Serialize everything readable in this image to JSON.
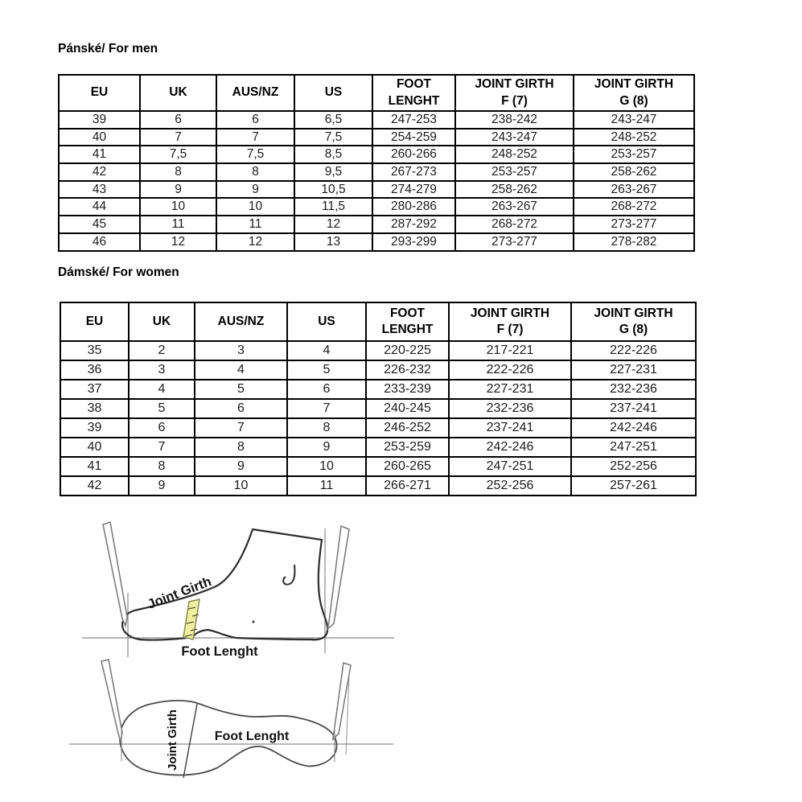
{
  "men": {
    "title": "Pánské/ For men",
    "table": {
      "headers": [
        "EU",
        "UK",
        "AUS/NZ",
        "US",
        "FOOT\nLENGHT",
        "JOINT GIRTH\nF (7)",
        "JOINT GIRTH\nG (8)"
      ],
      "rows": [
        [
          "39",
          "6",
          "6",
          "6,5",
          "247-253",
          "238-242",
          "243-247"
        ],
        [
          "40",
          "7",
          "7",
          "7,5",
          "254-259",
          "243-247",
          "248-252"
        ],
        [
          "41",
          "7,5",
          "7,5",
          "8,5",
          "260-266",
          "248-252",
          "253-257"
        ],
        [
          "42",
          "8",
          "8",
          "9,5",
          "267-273",
          "253-257",
          "258-262"
        ],
        [
          "43",
          "9",
          "9",
          "10,5",
          "274-279",
          "258-262",
          "263-267"
        ],
        [
          "44",
          "10",
          "10",
          "11,5",
          "280-286",
          "263-267",
          "268-272"
        ],
        [
          "45",
          "11",
          "11",
          "12",
          "287-292",
          "268-272",
          "273-277"
        ],
        [
          "46",
          "12",
          "12",
          "13",
          "293-299",
          "273-277",
          "278-282"
        ]
      ]
    }
  },
  "women": {
    "title": "Dámské/ For women",
    "table": {
      "headers": [
        "EU",
        "UK",
        "AUS/NZ",
        "US",
        "FOOT\nLENGHT",
        "JOINT GIRTH\nF (7)",
        "JOINT GIRTH\nG (8)"
      ],
      "rows": [
        [
          "35",
          "2",
          "3",
          "4",
          "220-225",
          "217-221",
          "222-226"
        ],
        [
          "36",
          "3",
          "4",
          "5",
          "226-232",
          "222-226",
          "227-231"
        ],
        [
          "37",
          "4",
          "5",
          "6",
          "233-239",
          "227-231",
          "232-236"
        ],
        [
          "38",
          "5",
          "6",
          "7",
          "240-245",
          "232-236",
          "237-241"
        ],
        [
          "39",
          "6",
          "7",
          "8",
          "246-252",
          "237-241",
          "242-246"
        ],
        [
          "40",
          "7",
          "8",
          "9",
          "253-259",
          "242-246",
          "247-251"
        ],
        [
          "41",
          "8",
          "9",
          "10",
          "260-265",
          "247-251",
          "252-256"
        ],
        [
          "42",
          "9",
          "10",
          "11",
          "266-271",
          "252-256",
          "257-261"
        ]
      ]
    }
  },
  "diagram_side": {
    "joint_girth_label": "Joint Girth",
    "foot_length_label": "Foot Lenght",
    "tape_color": "#f0f0a0"
  },
  "diagram_top": {
    "joint_girth_label": "Joint Girth",
    "foot_length_label": "Foot Lenght"
  }
}
